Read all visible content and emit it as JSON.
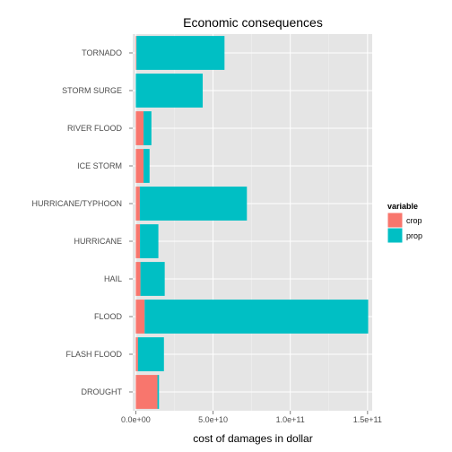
{
  "chart_data": {
    "type": "bar",
    "orientation": "horizontal",
    "stacked": true,
    "title": "Economic consequences",
    "xlabel": "cost of damages in dollar",
    "ylabel": "",
    "categories": [
      "TORNADO",
      "STORM SURGE",
      "RIVER FLOOD",
      "ICE STORM",
      "HURRICANE/TYPHOON",
      "HURRICANE",
      "HAIL",
      "FLOOD",
      "FLASH FLOOD",
      "DROUGHT"
    ],
    "series": [
      {
        "name": "crop",
        "color": "#F8766D",
        "values": [
          400000000,
          5000,
          5000000000,
          5000000000,
          2600000000,
          2700000000,
          3000000000,
          5700000000,
          1400000000,
          14000000000
        ]
      },
      {
        "name": "prop",
        "color": "#00BFC4",
        "values": [
          57000000000,
          43300000000,
          5100000000,
          3900000000,
          69300000000,
          11900000000,
          15700000000,
          144700000000,
          16800000000,
          1000000000
        ]
      }
    ],
    "xlim": [
      -2000000000,
      153000000000
    ],
    "ticks": [
      {
        "value": 0,
        "label": "0.0e+00"
      },
      {
        "value": 50000000000,
        "label": "5.0e+10"
      },
      {
        "value": 100000000000,
        "label": "1.0e+11"
      },
      {
        "value": 150000000000,
        "label": "1.5e+11"
      }
    ],
    "grid": true,
    "background": "#E5E5E5",
    "legend": {
      "title": "variable",
      "position": "right",
      "items": [
        "crop",
        "prop"
      ]
    }
  }
}
